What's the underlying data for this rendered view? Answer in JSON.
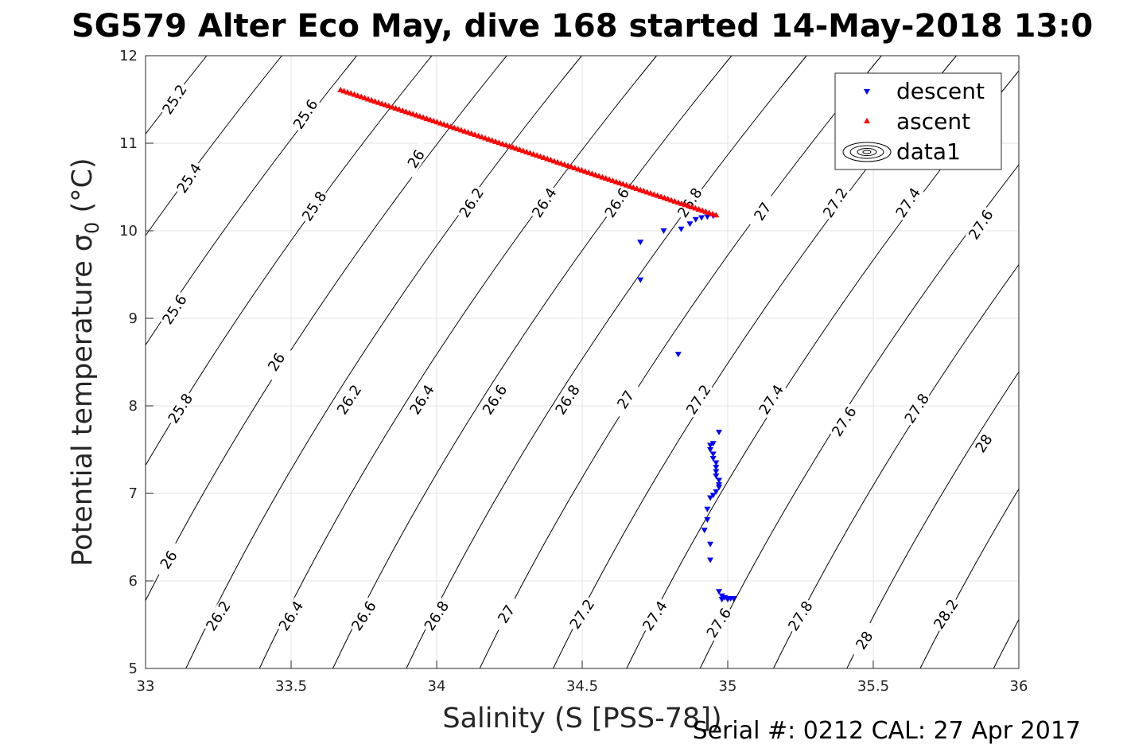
{
  "figure": {
    "title": "SG579 Alter Eco May, dive 168 started 14-May-2018 13:0",
    "footer": "Serial #: 0212  CAL: 27 Apr 2017"
  },
  "chart_data": {
    "type": "scatter",
    "title": "SG579 Alter Eco May, dive 168 started 14-May-2018 13:0",
    "xlabel": "Salinity (S [PSS-78])",
    "ylabel": "Potential temperature σ",
    "ylabel_sub": "0",
    "ylabel_unit": " (°C)",
    "xlim": [
      33,
      36
    ],
    "ylim": [
      5,
      12
    ],
    "xticks": [
      "33",
      "33.5",
      "34",
      "34.5",
      "35",
      "35.5",
      "36"
    ],
    "yticks": [
      "5",
      "6",
      "7",
      "8",
      "9",
      "10",
      "11",
      "12"
    ],
    "grid": true,
    "legend_position": "top-right",
    "legend": [
      "descent",
      "ascent",
      "data1"
    ],
    "colors": {
      "descent": "#0000ff",
      "ascent": "#ff0000",
      "contour": "#000000"
    },
    "contour_levels": [
      "25.2",
      "25.4",
      "25.6",
      "25.8",
      "26",
      "26.2",
      "26.4",
      "26.6",
      "26.8",
      "27",
      "27.2",
      "27.4",
      "27.6",
      "27.8",
      "28",
      "28.2"
    ],
    "contour_labels": [
      {
        "text": "25.2",
        "s": 33.1,
        "t": 11.5
      },
      {
        "text": "25.4",
        "s": 33.15,
        "t": 10.6
      },
      {
        "text": "25.6",
        "s": 33.55,
        "t": 11.33
      },
      {
        "text": "25.6",
        "s": 33.1,
        "t": 9.1
      },
      {
        "text": "25.8",
        "s": 33.58,
        "t": 10.28
      },
      {
        "text": "25.8",
        "s": 33.12,
        "t": 7.97
      },
      {
        "text": "26",
        "s": 33.93,
        "t": 10.82
      },
      {
        "text": "26",
        "s": 33.45,
        "t": 8.5
      },
      {
        "text": "26",
        "s": 33.08,
        "t": 6.24
      },
      {
        "text": "26.2",
        "s": 34.12,
        "t": 10.32
      },
      {
        "text": "26.2",
        "s": 33.7,
        "t": 8.07
      },
      {
        "text": "26.2",
        "s": 33.25,
        "t": 5.6
      },
      {
        "text": "26.4",
        "s": 34.37,
        "t": 10.32
      },
      {
        "text": "26.4",
        "s": 33.95,
        "t": 8.07
      },
      {
        "text": "26.4",
        "s": 33.5,
        "t": 5.6
      },
      {
        "text": "26.6",
        "s": 34.62,
        "t": 10.32
      },
      {
        "text": "26.6",
        "s": 34.2,
        "t": 8.07
      },
      {
        "text": "26.6",
        "s": 33.75,
        "t": 5.6
      },
      {
        "text": "26.8",
        "s": 34.87,
        "t": 10.32
      },
      {
        "text": "26.8",
        "s": 34.45,
        "t": 8.07
      },
      {
        "text": "26.8",
        "s": 34.0,
        "t": 5.6
      },
      {
        "text": "27",
        "s": 35.12,
        "t": 10.22
      },
      {
        "text": "27",
        "s": 34.65,
        "t": 8.07
      },
      {
        "text": "27",
        "s": 34.24,
        "t": 5.62
      },
      {
        "text": "27.2",
        "s": 35.37,
        "t": 10.32
      },
      {
        "text": "27.2",
        "s": 34.9,
        "t": 8.07
      },
      {
        "text": "27.2",
        "s": 34.5,
        "t": 5.62
      },
      {
        "text": "27.4",
        "s": 35.62,
        "t": 10.32
      },
      {
        "text": "27.4",
        "s": 35.15,
        "t": 8.07
      },
      {
        "text": "27.4",
        "s": 34.75,
        "t": 5.6
      },
      {
        "text": "27.6",
        "s": 35.87,
        "t": 10.07
      },
      {
        "text": "27.6",
        "s": 35.4,
        "t": 7.82
      },
      {
        "text": "27.6",
        "s": 34.97,
        "t": 5.52
      },
      {
        "text": "27.8",
        "s": 35.65,
        "t": 7.97
      },
      {
        "text": "27.8",
        "s": 35.25,
        "t": 5.6
      },
      {
        "text": "28",
        "s": 35.88,
        "t": 7.57
      },
      {
        "text": "28",
        "s": 35.47,
        "t": 5.32
      },
      {
        "text": "28.2",
        "s": 35.75,
        "t": 5.62
      }
    ],
    "series": [
      {
        "name": "descent",
        "marker": "triangle-down",
        "points": [
          [
            34.7,
            9.87
          ],
          [
            34.7,
            9.44
          ],
          [
            34.78,
            10.0
          ],
          [
            34.83,
            8.59
          ],
          [
            34.84,
            10.02
          ],
          [
            34.87,
            10.08
          ],
          [
            34.89,
            10.13
          ],
          [
            34.91,
            10.15
          ],
          [
            34.93,
            10.16
          ],
          [
            34.95,
            10.17
          ],
          [
            34.97,
            7.7
          ],
          [
            34.95,
            7.57
          ],
          [
            34.94,
            7.55
          ],
          [
            34.94,
            7.5
          ],
          [
            34.95,
            7.45
          ],
          [
            34.95,
            7.4
          ],
          [
            34.96,
            7.35
          ],
          [
            34.96,
            7.3
          ],
          [
            34.96,
            7.25
          ],
          [
            34.96,
            7.2
          ],
          [
            34.97,
            7.15
          ],
          [
            34.97,
            7.1
          ],
          [
            34.97,
            7.07
          ],
          [
            34.96,
            7.02
          ],
          [
            34.95,
            6.98
          ],
          [
            34.94,
            6.95
          ],
          [
            34.93,
            6.82
          ],
          [
            34.93,
            6.7
          ],
          [
            34.92,
            6.58
          ],
          [
            34.94,
            6.42
          ],
          [
            34.94,
            6.24
          ],
          [
            34.97,
            5.88
          ],
          [
            34.98,
            5.83
          ],
          [
            34.99,
            5.81
          ],
          [
            35.0,
            5.8
          ],
          [
            35.01,
            5.8
          ],
          [
            35.02,
            5.8
          ],
          [
            34.98,
            5.79
          ],
          [
            35.0,
            5.79
          ]
        ]
      },
      {
        "name": "ascent",
        "marker": "triangle-up",
        "start": [
          33.67,
          11.61
        ],
        "end": [
          34.96,
          10.18
        ],
        "count": 110
      },
      {
        "name": "data1",
        "marker": "contour"
      }
    ]
  }
}
